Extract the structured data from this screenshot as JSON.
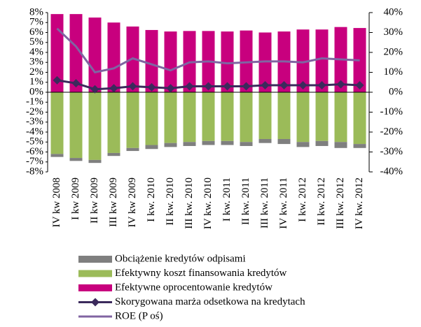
{
  "chart_data": {
    "type": "bar",
    "categories": [
      "IV kw 2008",
      "I kw 2009",
      "II kw 2009",
      "III kw 2009",
      "IV kw 2009",
      "I kw. 2010",
      "II kw. 2010",
      "III kw. 2010",
      "IV kw. 2010",
      "I kw. 2011",
      "II kw. 2011",
      "III kw. 2011",
      "IV kw. 2011",
      "I kw. 2012",
      "II kw. 2012",
      "III kw. 2012",
      "IV kw. 2012"
    ],
    "series": [
      {
        "name": "Obciążenie kredytów odpisami",
        "type": "bar",
        "color": "#7f7f7f",
        "values": [
          -0.3,
          -0.3,
          -0.3,
          -0.3,
          -0.3,
          -0.4,
          -0.4,
          -0.4,
          -0.4,
          -0.4,
          -0.4,
          -0.4,
          -0.5,
          -0.5,
          -0.5,
          -0.6,
          -0.4
        ]
      },
      {
        "name": "Efektywny koszt finansowania kredytów",
        "type": "bar",
        "color": "#9bbb59",
        "values": [
          -6.2,
          -6.6,
          -6.8,
          -6.1,
          -5.6,
          -5.3,
          -5.1,
          -5.0,
          -4.9,
          -4.9,
          -5.0,
          -4.7,
          -4.7,
          -5.0,
          -4.9,
          -5.0,
          -5.2
        ]
      },
      {
        "name": "Efektywne oprocentowanie kredytów",
        "type": "bar",
        "color": "#c8007e",
        "values": [
          7.85,
          7.85,
          7.5,
          7.0,
          6.6,
          6.25,
          6.1,
          6.15,
          6.15,
          6.1,
          6.2,
          6.0,
          6.1,
          6.3,
          6.3,
          6.55,
          6.45
        ]
      },
      {
        "name": "Skorygowana marża odsetkowa na kredytach",
        "type": "line",
        "marker": "diamond",
        "color": "#3b2a5c",
        "values": [
          1.2,
          0.9,
          0.3,
          0.4,
          0.6,
          0.5,
          0.4,
          0.6,
          0.6,
          0.6,
          0.6,
          0.7,
          0.7,
          0.7,
          0.7,
          0.8,
          0.7
        ]
      },
      {
        "name": "ROE (P oś)",
        "type": "line",
        "axis": "y2",
        "color": "#8064a2",
        "values": [
          32,
          23,
          10,
          12,
          17,
          14,
          11,
          15,
          15.5,
          14.5,
          15,
          15.5,
          15.5,
          15,
          17,
          16.5,
          16
        ]
      }
    ],
    "ylim": [
      -8,
      8
    ],
    "yticks": [
      {
        "value": -8,
        "label": "-8%"
      },
      {
        "value": -7,
        "label": "-7%"
      },
      {
        "value": -6,
        "label": "-6%"
      },
      {
        "value": -5,
        "label": "-5%"
      },
      {
        "value": -4,
        "label": "-4%"
      },
      {
        "value": -3,
        "label": "-3%"
      },
      {
        "value": -2,
        "label": "-2%"
      },
      {
        "value": -1,
        "label": "-1%"
      },
      {
        "value": 0,
        "label": "0%"
      },
      {
        "value": 1,
        "label": "1%"
      },
      {
        "value": 2,
        "label": "2%"
      },
      {
        "value": 3,
        "label": "3%"
      },
      {
        "value": 4,
        "label": "4%"
      },
      {
        "value": 5,
        "label": "5%"
      },
      {
        "value": 6,
        "label": "6%"
      },
      {
        "value": 7,
        "label": "7%"
      },
      {
        "value": 8,
        "label": "8%"
      }
    ],
    "y2lim": [
      -40,
      40
    ],
    "y2ticks": [
      {
        "value": -40,
        "label": "-40%"
      },
      {
        "value": -30,
        "label": "-30%"
      },
      {
        "value": -20,
        "label": "-20%"
      },
      {
        "value": -10,
        "label": "-10%"
      },
      {
        "value": 0,
        "label": "0%"
      },
      {
        "value": 10,
        "label": "10%"
      },
      {
        "value": 20,
        "label": "20%"
      },
      {
        "value": 30,
        "label": "30%"
      },
      {
        "value": 40,
        "label": "40%"
      }
    ],
    "legend": "bottom"
  }
}
